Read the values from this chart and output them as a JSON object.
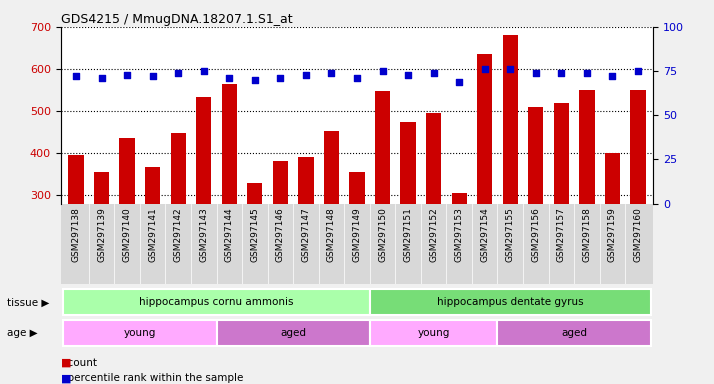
{
  "title": "GDS4215 / MmugDNA.18207.1.S1_at",
  "samples": [
    "GSM297138",
    "GSM297139",
    "GSM297140",
    "GSM297141",
    "GSM297142",
    "GSM297143",
    "GSM297144",
    "GSM297145",
    "GSM297146",
    "GSM297147",
    "GSM297148",
    "GSM297149",
    "GSM297150",
    "GSM297151",
    "GSM297152",
    "GSM297153",
    "GSM297154",
    "GSM297155",
    "GSM297156",
    "GSM297157",
    "GSM297158",
    "GSM297159",
    "GSM297160"
  ],
  "counts": [
    395,
    355,
    435,
    368,
    448,
    533,
    563,
    328,
    382,
    390,
    452,
    355,
    548,
    473,
    495,
    305,
    636,
    680,
    510,
    520,
    550,
    400,
    549
  ],
  "percentiles": [
    72,
    71,
    73,
    72,
    74,
    75,
    71,
    70,
    71,
    73,
    74,
    71,
    75,
    73,
    74,
    69,
    76,
    76,
    74,
    74,
    74,
    72,
    75
  ],
  "ylim_left": [
    280,
    700
  ],
  "ylim_right": [
    0,
    100
  ],
  "yticks_left": [
    300,
    400,
    500,
    600,
    700
  ],
  "yticks_right": [
    0,
    25,
    50,
    75,
    100
  ],
  "bar_color": "#cc0000",
  "dot_color": "#0000cc",
  "tissue_groups": [
    {
      "label": "hippocampus cornu ammonis",
      "start": 0,
      "end": 12,
      "color": "#aaffaa"
    },
    {
      "label": "hippocampus dentate gyrus",
      "start": 12,
      "end": 23,
      "color": "#77dd77"
    }
  ],
  "age_groups": [
    {
      "label": "young",
      "start": 0,
      "end": 6,
      "color": "#ffaaff"
    },
    {
      "label": "aged",
      "start": 6,
      "end": 12,
      "color": "#cc77cc"
    },
    {
      "label": "young",
      "start": 12,
      "end": 17,
      "color": "#ffaaff"
    },
    {
      "label": "aged",
      "start": 17,
      "end": 23,
      "color": "#cc77cc"
    }
  ],
  "fig_bg": "#f0f0f0",
  "plot_bg": "#ffffff",
  "tick_area_bg": "#d8d8d8",
  "grid_color": "#000000",
  "bar_color_legend": "#cc0000",
  "dot_color_legend": "#0000cc"
}
